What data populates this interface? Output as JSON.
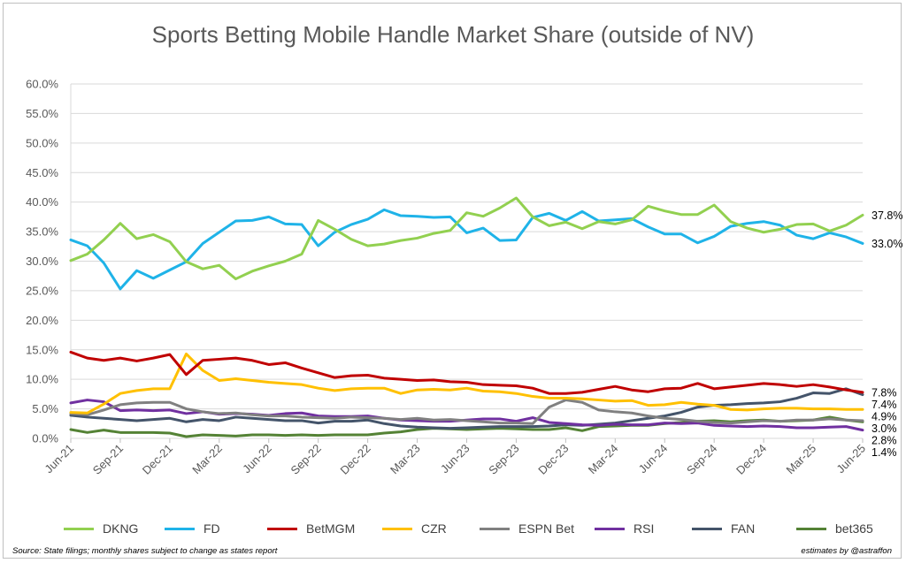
{
  "chart_data": {
    "type": "line",
    "title": "Sports Betting Mobile Handle Market Share (outside of NV)",
    "xlabel": "",
    "ylabel": "",
    "ylim": [
      0,
      60
    ],
    "yticks": [
      "0.0%",
      "5.0%",
      "10.0%",
      "15.0%",
      "20.0%",
      "25.0%",
      "30.0%",
      "35.0%",
      "40.0%",
      "45.0%",
      "50.0%",
      "55.0%",
      "60.0%"
    ],
    "x_tick_labels": [
      "Jun-21",
      "Sep-21",
      "Dec-21",
      "Mar-22",
      "Jun-22",
      "Sep-22",
      "Dec-22",
      "Mar-23",
      "Jun-23",
      "Sep-23",
      "Dec-23",
      "Mar-24",
      "Jun-24",
      "Sep-24",
      "Dec-24",
      "Mar-25",
      "Jun-25"
    ],
    "months": [
      "Jun-21",
      "Jul-21",
      "Aug-21",
      "Sep-21",
      "Oct-21",
      "Nov-21",
      "Dec-21",
      "Jan-22",
      "Feb-22",
      "Mar-22",
      "Apr-22",
      "May-22",
      "Jun-22",
      "Jul-22",
      "Aug-22",
      "Sep-22",
      "Oct-22",
      "Nov-22",
      "Dec-22",
      "Jan-23",
      "Feb-23",
      "Mar-23",
      "Apr-23",
      "May-23",
      "Jun-23",
      "Jul-23",
      "Aug-23",
      "Sep-23",
      "Oct-23",
      "Nov-23",
      "Dec-23",
      "Jan-24",
      "Feb-24",
      "Mar-24",
      "Apr-24",
      "May-24",
      "Jun-24",
      "Jul-24",
      "Aug-24",
      "Sep-24",
      "Oct-24",
      "Nov-24",
      "Dec-24",
      "Jan-25",
      "Feb-25",
      "Mar-25",
      "Apr-25",
      "May-25",
      "Jun-25"
    ],
    "grid": true,
    "legend_position": "bottom",
    "series": [
      {
        "name": "DKNG",
        "color": "#92d050",
        "end_label": "37.8%",
        "values": [
          30.1,
          31.2,
          33.6,
          36.4,
          33.8,
          34.5,
          33.3,
          29.9,
          28.7,
          29.3,
          27.0,
          28.3,
          29.2,
          30.0,
          31.2,
          36.9,
          35.4,
          33.7,
          32.6,
          32.9,
          33.5,
          33.9,
          34.7,
          35.2,
          38.2,
          37.6,
          39.0,
          40.7,
          37.5,
          36.0,
          36.6,
          35.5,
          36.7,
          36.3,
          37.0,
          39.3,
          38.5,
          37.9,
          37.9,
          39.5,
          36.7,
          35.6,
          34.9,
          35.4,
          36.2,
          36.3,
          35.1,
          36.1,
          37.8
        ]
      },
      {
        "name": "FD",
        "color": "#1fb3e8",
        "end_label": "33.0%",
        "values": [
          33.6,
          32.6,
          29.7,
          25.3,
          28.4,
          27.1,
          28.5,
          29.9,
          33.0,
          34.9,
          36.8,
          36.9,
          37.5,
          36.3,
          36.2,
          32.6,
          34.9,
          36.2,
          37.1,
          38.7,
          37.7,
          37.6,
          37.4,
          37.5,
          34.8,
          35.6,
          33.5,
          33.6,
          37.4,
          38.1,
          36.9,
          38.4,
          36.8,
          37.0,
          37.2,
          35.8,
          34.6,
          34.6,
          33.1,
          34.2,
          35.9,
          36.4,
          36.7,
          36.1,
          34.4,
          33.8,
          34.8,
          34.1,
          33.0
        ]
      },
      {
        "name": "BetMGM",
        "color": "#c00000",
        "end_label": "7.8%",
        "values": [
          14.6,
          13.6,
          13.2,
          13.6,
          13.1,
          13.6,
          14.2,
          10.8,
          13.2,
          13.4,
          13.6,
          13.2,
          12.5,
          12.8,
          11.9,
          11.1,
          10.3,
          10.6,
          10.7,
          10.2,
          10.0,
          9.8,
          9.9,
          9.6,
          9.5,
          9.1,
          9.0,
          8.9,
          8.5,
          7.6,
          7.6,
          7.8,
          8.3,
          8.8,
          8.2,
          7.9,
          8.4,
          8.5,
          9.3,
          8.4,
          8.7,
          9.0,
          9.3,
          9.1,
          8.8,
          9.1,
          8.7,
          8.2,
          7.8
        ]
      },
      {
        "name": "CZR",
        "color": "#ffc000",
        "end_label": "4.9%",
        "values": [
          4.4,
          4.3,
          5.8,
          7.6,
          8.1,
          8.4,
          8.4,
          14.3,
          11.5,
          9.8,
          10.1,
          9.8,
          9.5,
          9.3,
          9.1,
          8.5,
          8.1,
          8.4,
          8.5,
          8.5,
          7.6,
          8.2,
          8.3,
          8.2,
          8.5,
          8.0,
          7.9,
          7.6,
          7.1,
          6.8,
          6.8,
          6.7,
          6.5,
          6.3,
          6.4,
          5.6,
          5.7,
          6.1,
          5.8,
          5.6,
          4.9,
          4.8,
          5.0,
          5.1,
          5.1,
          5.0,
          5.0,
          4.9,
          4.9
        ]
      },
      {
        "name": "ESPN Bet",
        "color": "#808080",
        "end_label": "3.0%",
        "values": [
          4.2,
          4.0,
          4.8,
          5.7,
          6.0,
          6.1,
          6.1,
          5.0,
          4.5,
          4.2,
          4.3,
          4.0,
          3.8,
          3.8,
          3.6,
          3.5,
          3.4,
          3.6,
          3.5,
          3.4,
          3.2,
          3.4,
          3.1,
          3.2,
          3.0,
          2.8,
          2.6,
          2.6,
          2.5,
          5.3,
          6.5,
          6.1,
          4.8,
          4.5,
          4.3,
          3.8,
          3.4,
          3.2,
          2.9,
          2.7,
          2.6,
          2.8,
          3.0,
          2.9,
          3.1,
          3.1,
          3.3,
          3.1,
          3.0
        ]
      },
      {
        "name": "RSI",
        "color": "#7030a0",
        "end_label": "1.4%",
        "values": [
          6.0,
          6.5,
          6.2,
          4.7,
          4.8,
          4.7,
          4.8,
          4.2,
          4.5,
          4.1,
          4.2,
          4.1,
          3.9,
          4.2,
          4.3,
          3.8,
          3.7,
          3.7,
          3.8,
          3.4,
          3.1,
          3.0,
          2.9,
          2.9,
          3.1,
          3.3,
          3.3,
          2.9,
          3.5,
          2.7,
          2.5,
          2.3,
          2.2,
          2.4,
          2.3,
          2.3,
          2.6,
          2.5,
          2.6,
          2.2,
          2.1,
          2.0,
          2.1,
          2.0,
          1.8,
          1.8,
          1.9,
          2.0,
          1.4
        ]
      },
      {
        "name": "FAN",
        "color": "#44546a",
        "end_label": "7.4%",
        "values": [
          3.9,
          3.6,
          3.4,
          3.2,
          3.0,
          3.2,
          3.4,
          2.8,
          3.2,
          3.0,
          3.6,
          3.4,
          3.2,
          3.0,
          3.0,
          2.6,
          2.9,
          2.9,
          3.1,
          2.5,
          2.1,
          1.9,
          1.8,
          1.7,
          1.8,
          1.9,
          2.0,
          2.0,
          2.0,
          2.1,
          2.3,
          2.2,
          2.4,
          2.6,
          3.0,
          3.4,
          3.8,
          4.4,
          5.3,
          5.6,
          5.7,
          5.9,
          6.0,
          6.2,
          6.8,
          7.7,
          7.6,
          8.4,
          7.4
        ]
      },
      {
        "name": "bet365",
        "color": "#548235",
        "end_label": "2.8%",
        "values": [
          1.5,
          1.0,
          1.4,
          1.0,
          1.0,
          1.0,
          0.9,
          0.3,
          0.6,
          0.5,
          0.4,
          0.6,
          0.6,
          0.5,
          0.6,
          0.5,
          0.6,
          0.6,
          0.6,
          0.9,
          1.1,
          1.5,
          1.7,
          1.6,
          1.5,
          1.6,
          1.7,
          1.6,
          1.5,
          1.5,
          1.8,
          1.3,
          2.0,
          2.1,
          2.2,
          2.2,
          2.5,
          2.7,
          2.9,
          3.0,
          2.8,
          3.0,
          3.1,
          2.9,
          3.0,
          3.1,
          3.6,
          3.1,
          2.8
        ]
      }
    ]
  },
  "footer": {
    "source": "Source: State filings; monthly shares subject to change as states report",
    "credit": "estimates by @astraffon"
  }
}
